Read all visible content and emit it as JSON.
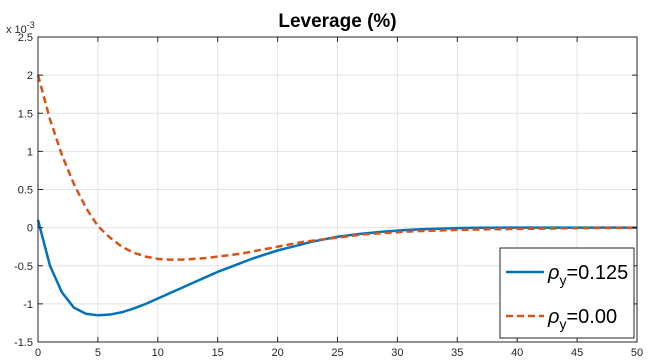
{
  "chart_data": {
    "type": "line",
    "title": "Leverage (%)",
    "xlabel": "",
    "ylabel": "",
    "xlim": [
      0,
      50
    ],
    "ylim": [
      -1.5,
      2.5
    ],
    "y_exponent_label": "x 10",
    "y_exponent_power": "-3",
    "x_ticks": [
      "0",
      "5",
      "10",
      "15",
      "20",
      "25",
      "30",
      "35",
      "40",
      "45",
      "50"
    ],
    "y_ticks": [
      "2.5",
      "2",
      "1.5",
      "1",
      "0.5",
      "0",
      "-0.5",
      "-1",
      "-1.5"
    ],
    "grid": true,
    "legend_position": "bottom-right",
    "x": [
      0,
      1,
      2,
      3,
      4,
      5,
      6,
      7,
      8,
      9,
      10,
      11,
      12,
      13,
      14,
      15,
      16,
      17,
      18,
      19,
      20,
      21,
      22,
      23,
      24,
      25,
      26,
      27,
      28,
      29,
      30,
      31,
      32,
      33,
      34,
      35,
      36,
      37,
      38,
      39,
      40,
      41,
      42,
      43,
      44,
      45,
      46,
      47,
      48,
      49,
      50
    ],
    "series": [
      {
        "legend_symbol": "ρ",
        "legend_subscript": "y",
        "legend_value": "=0.125",
        "color": "#0072BD",
        "dash": "solid",
        "values": [
          0.1,
          -0.5,
          -0.85,
          -1.05,
          -1.13,
          -1.15,
          -1.14,
          -1.11,
          -1.06,
          -1.0,
          -0.93,
          -0.86,
          -0.79,
          -0.72,
          -0.65,
          -0.58,
          -0.52,
          -0.46,
          -0.4,
          -0.35,
          -0.3,
          -0.26,
          -0.22,
          -0.18,
          -0.15,
          -0.12,
          -0.1,
          -0.08,
          -0.065,
          -0.05,
          -0.04,
          -0.03,
          -0.022,
          -0.016,
          -0.011,
          -0.007,
          -0.004,
          -0.002,
          -0.001,
          0.0,
          0.0,
          0.0,
          0.0,
          0.0,
          0.0,
          0.0,
          0.0,
          0.0,
          0.0,
          0.0,
          0.0
        ]
      },
      {
        "legend_symbol": "ρ",
        "legend_subscript": "y",
        "legend_value": "=0.00",
        "color": "#D95319",
        "dash": "dashed",
        "values": [
          2.0,
          1.42,
          0.95,
          0.57,
          0.26,
          0.02,
          -0.13,
          -0.25,
          -0.33,
          -0.38,
          -0.41,
          -0.42,
          -0.42,
          -0.41,
          -0.4,
          -0.38,
          -0.36,
          -0.34,
          -0.31,
          -0.28,
          -0.25,
          -0.22,
          -0.19,
          -0.17,
          -0.15,
          -0.13,
          -0.11,
          -0.09,
          -0.08,
          -0.07,
          -0.06,
          -0.05,
          -0.045,
          -0.04,
          -0.035,
          -0.03,
          -0.027,
          -0.024,
          -0.021,
          -0.019,
          -0.017,
          -0.015,
          -0.013,
          -0.011,
          -0.009,
          -0.007,
          -0.006,
          -0.005,
          -0.004,
          -0.003,
          -0.002
        ]
      }
    ]
  }
}
